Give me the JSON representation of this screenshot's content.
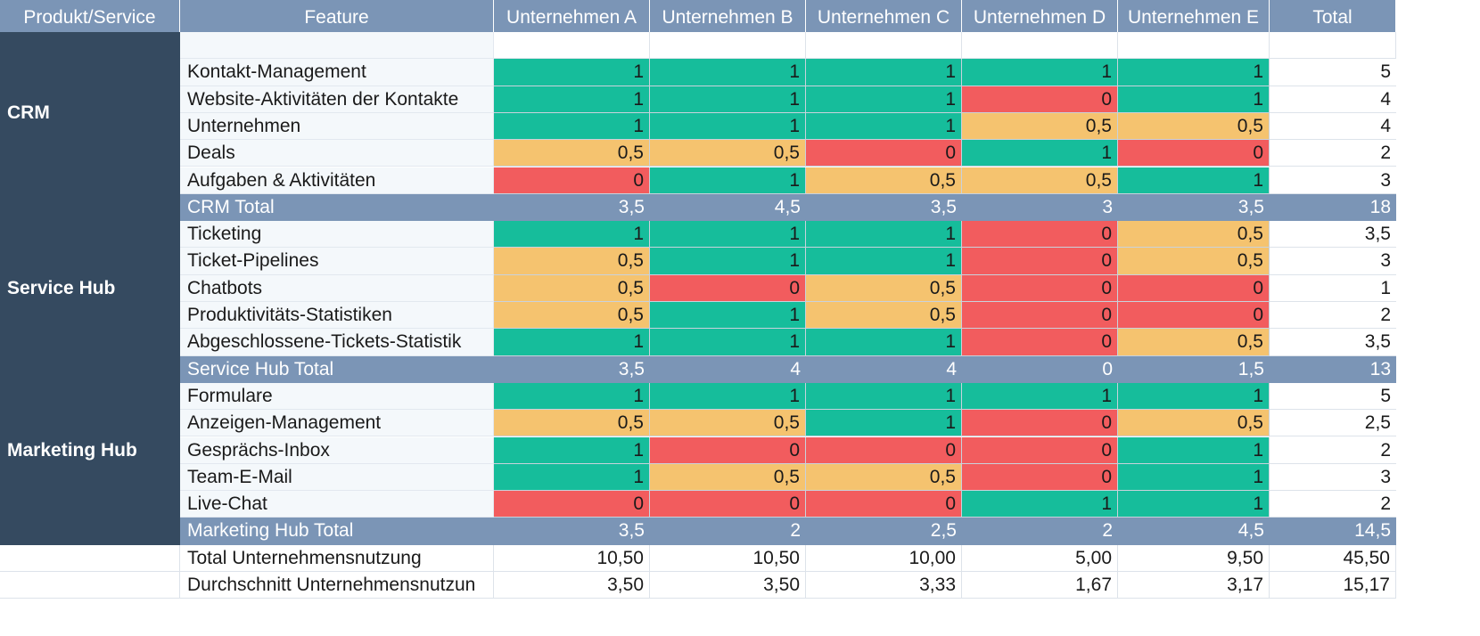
{
  "header": {
    "product_service": "Produkt/Service",
    "feature": "Feature",
    "companies": [
      "Unternehmen A",
      "Unternehmen B",
      "Unternehmen C",
      "Unternehmen D",
      "Unternehmen E"
    ],
    "total": "Total"
  },
  "colors": {
    "full": "#16bd9b",
    "half": "#f5c36f",
    "none": "#f25c5e",
    "header": "#7b95b6",
    "sidebar": "#354a60"
  },
  "groups": [
    {
      "name": "CRM",
      "rows": [
        {
          "feature": "Kontakt-Management",
          "values": [
            "1",
            "1",
            "1",
            "1",
            "1"
          ],
          "total": "5"
        },
        {
          "feature": "Website-Aktivitäten der Kontakte",
          "values": [
            "1",
            "1",
            "1",
            "0",
            "1"
          ],
          "total": "4"
        },
        {
          "feature": "Unternehmen",
          "values": [
            "1",
            "1",
            "1",
            "0,5",
            "0,5"
          ],
          "total": "4"
        },
        {
          "feature": "Deals",
          "values": [
            "0,5",
            "0,5",
            "0",
            "1",
            "0"
          ],
          "total": "2"
        },
        {
          "feature": "Aufgaben & Aktivitäten",
          "values": [
            "0",
            "1",
            "0,5",
            "0,5",
            "1"
          ],
          "total": "3"
        }
      ],
      "subtotal": {
        "label": "CRM Total",
        "values": [
          "3,5",
          "4,5",
          "3,5",
          "3",
          "3,5"
        ],
        "total": "18"
      }
    },
    {
      "name": "Service Hub",
      "rows": [
        {
          "feature": "Ticketing",
          "values": [
            "1",
            "1",
            "1",
            "0",
            "0,5"
          ],
          "total": "3,5"
        },
        {
          "feature": "Ticket-Pipelines",
          "values": [
            "0,5",
            "1",
            "1",
            "0",
            "0,5"
          ],
          "total": "3"
        },
        {
          "feature": "Chatbots",
          "values": [
            "0,5",
            "0",
            "0,5",
            "0",
            "0"
          ],
          "total": "1"
        },
        {
          "feature": "Produktivitäts-Statistiken",
          "values": [
            "0,5",
            "1",
            "0,5",
            "0",
            "0"
          ],
          "total": "2"
        },
        {
          "feature": "Abgeschlossene-Tickets-Statistik",
          "values": [
            "1",
            "1",
            "1",
            "0",
            "0,5"
          ],
          "total": "3,5"
        }
      ],
      "subtotal": {
        "label": "Service Hub Total",
        "values": [
          "3,5",
          "4",
          "4",
          "0",
          "1,5"
        ],
        "total": "13"
      }
    },
    {
      "name": "Marketing Hub",
      "rows": [
        {
          "feature": "Formulare",
          "values": [
            "1",
            "1",
            "1",
            "1",
            "1"
          ],
          "total": "5"
        },
        {
          "feature": "Anzeigen-Management",
          "values": [
            "0,5",
            "0,5",
            "1",
            "0",
            "0,5"
          ],
          "total": "2,5"
        },
        {
          "feature": "Gesprächs-Inbox",
          "values": [
            "1",
            "0",
            "0",
            "0",
            "1"
          ],
          "total": "2"
        },
        {
          "feature": "Team-E-Mail",
          "values": [
            "1",
            "0,5",
            "0,5",
            "0",
            "1"
          ],
          "total": "3"
        },
        {
          "feature": "Live-Chat",
          "values": [
            "0",
            "0",
            "0",
            "1",
            "1"
          ],
          "total": "2"
        }
      ],
      "subtotal": {
        "label": "Marketing Hub Total",
        "values": [
          "3,5",
          "2",
          "2,5",
          "2",
          "4,5"
        ],
        "total": "14,5"
      }
    }
  ],
  "summary": [
    {
      "label": "Total Unternehmensnutzung",
      "values": [
        "10,50",
        "10,50",
        "10,00",
        "5,00",
        "9,50"
      ],
      "total": "45,50"
    },
    {
      "label": "Durchschnitt Unternehmensnutzun",
      "values": [
        "3,50",
        "3,50",
        "3,33",
        "1,67",
        "3,17"
      ],
      "total": "15,17"
    }
  ]
}
